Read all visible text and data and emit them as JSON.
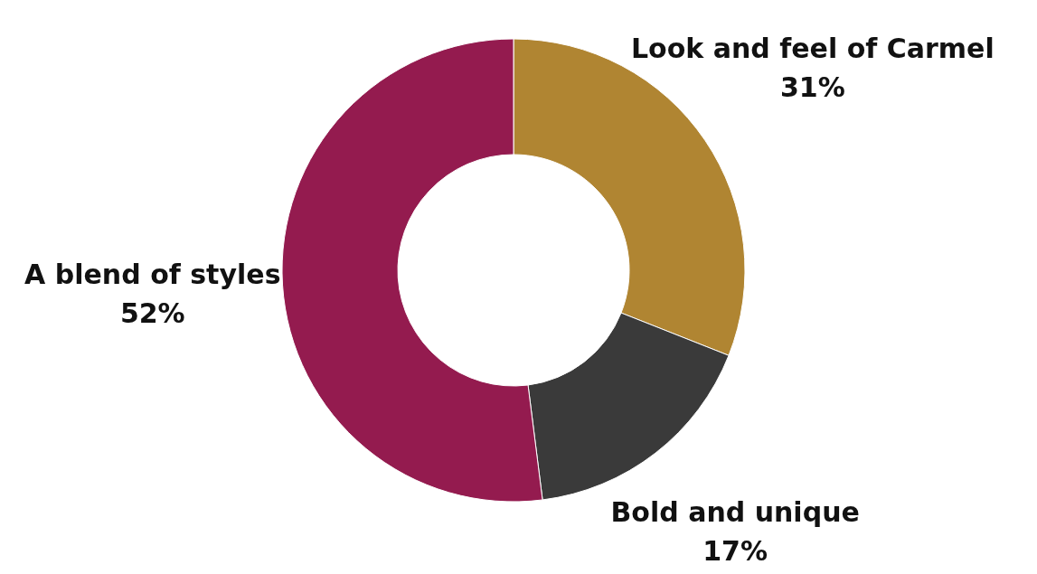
{
  "chart_data": {
    "type": "donut",
    "categories": [
      "Look and feel of Carmel",
      "Bold and unique",
      "A blend of styles"
    ],
    "values": [
      31,
      17,
      52
    ],
    "value_labels": [
      "31%",
      "17%",
      "52%"
    ],
    "colors": [
      "#b08532",
      "#3a3a3a",
      "#941b4f"
    ]
  }
}
